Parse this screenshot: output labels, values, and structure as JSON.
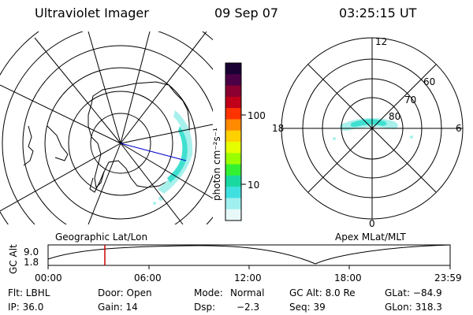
{
  "header": {
    "title": "Ultraviolet Imager",
    "date": "09 Sep 07",
    "time": "03:25:15 UT"
  },
  "colorbar": {
    "unit_label": "photon cm⁻²s⁻¹",
    "ticks": [
      "100",
      "10"
    ],
    "colors": [
      "#1a0033",
      "#4b0045",
      "#8a0030",
      "#c0001a",
      "#ff3300",
      "#ff8a00",
      "#ffd000",
      "#e6ff00",
      "#9aff00",
      "#33f033",
      "#1ad9a0",
      "#40e0e0",
      "#a0f0f0",
      "#e8f8f8"
    ]
  },
  "right_plot": {
    "mlt_labels": {
      "top": "12",
      "left": "18",
      "right": "6",
      "bottom": "0"
    },
    "lat_labels": [
      "60",
      "70",
      "80"
    ]
  },
  "timeline": {
    "left_title": "Geographic Lat/Lon",
    "right_title": "Apex MLat/MLT",
    "axis_label": "GC Alt",
    "y_top": "9.0",
    "y_bottom": "1.8",
    "x_ticks": [
      "00:00",
      "06:00",
      "12:00",
      "18:00",
      "23:59"
    ],
    "marker_time": "03:25"
  },
  "info": {
    "row1": {
      "filter": "Flt: LBHL",
      "door": "Door: Open",
      "mode_label": "Mode:",
      "mode_value": "Normal",
      "gc_alt": "GC Alt: 8.0 Re",
      "glat": "GLat: −84.9"
    },
    "row2": {
      "ip": "IP: 36.0",
      "gain": "Gain: 14",
      "dsp_label": "Dsp:",
      "dsp_value": "−2.3",
      "seq": "Seq: 39",
      "glon": "GLon: 318.3"
    }
  },
  "colors": {
    "aurora_cyan": "#40e0d0",
    "aurora_light": "#a8f0ec",
    "marker_red": "#cc0000",
    "sun_line_blue": "#0000cc"
  }
}
